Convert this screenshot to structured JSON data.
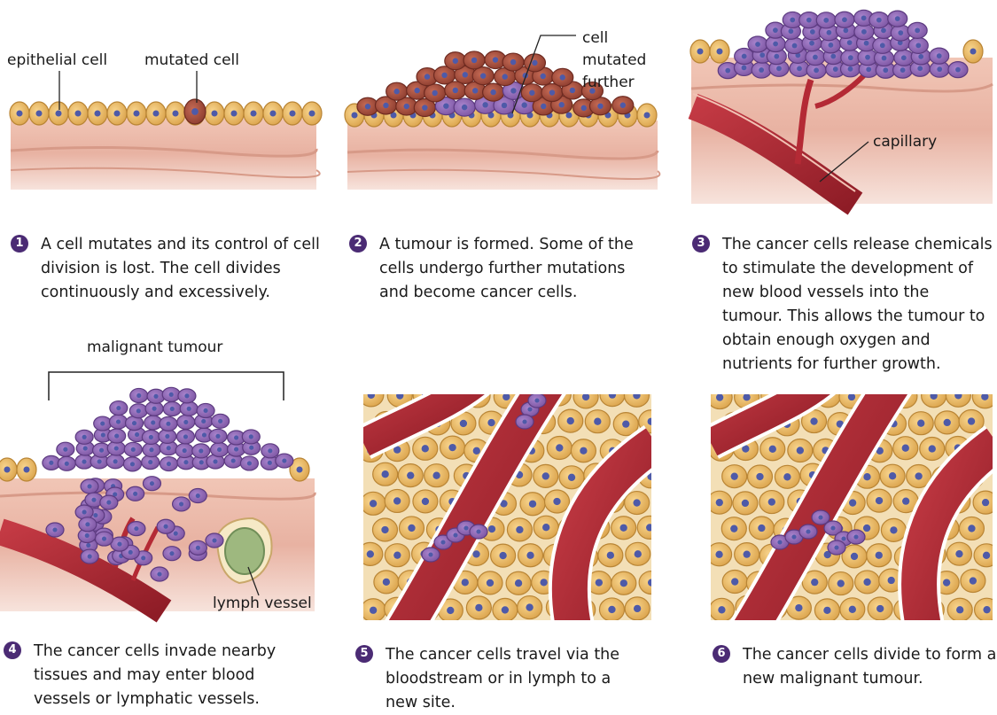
{
  "labels": {
    "epithelial_cell": "epithelial cell",
    "mutated_cell": "mutated cell",
    "cell_mutated_further": "cell mutated further",
    "capillary": "capillary",
    "malignant_tumour": "malignant tumour",
    "lymph_vessel": "lymph vessel"
  },
  "steps": [
    {
      "number": "1",
      "text": "A cell mutates and its control of cell division is lost. The cell divides continuously and excessively."
    },
    {
      "number": "2",
      "text": "A tumour is formed. Some of the cells undergo further mutations and become cancer cells."
    },
    {
      "number": "3",
      "text": "The cancer cells release chemicals to stimulate the development of new blood vessels into the tumour. This allows the tumour to obtain enough oxygen and nutrients for further growth."
    },
    {
      "number": "4",
      "text": "The cancer cells invade nearby tissues and may enter blood vessels or lymphatic vessels."
    },
    {
      "number": "5",
      "text": "The cancer cells travel via the bloodstream or in lymph to a new site."
    },
    {
      "number": "6",
      "text": "The cancer cells divide to form a new malignant tumour."
    }
  ],
  "colors": {
    "epithelial": "#e9b35a",
    "mutated": "#a34a3a",
    "cancer": "#8a62b0",
    "tissue": "#e8b8a8",
    "vessel": "#b42a35",
    "lymph": "#a9c08a",
    "number_badge": "#4b2b74"
  }
}
